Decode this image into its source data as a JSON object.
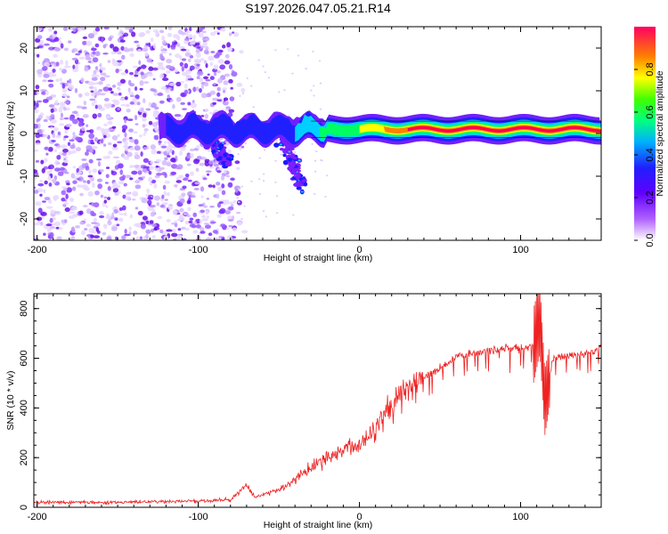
{
  "title": "S197.2026.047.05.21.R14",
  "chart_data": [
    {
      "type": "heatmap",
      "xlabel": "Height of straight line (km)",
      "ylabel": "Frequency (Hz)",
      "xlim": [
        -202,
        150
      ],
      "ylim": [
        -25,
        25
      ],
      "xticks": [
        -200,
        -100,
        0,
        100
      ],
      "yticks": [
        20,
        10,
        0,
        -10,
        -20
      ],
      "colorbar": {
        "label": "Normalized spectral amplitude",
        "range": [
          0.0,
          1.0
        ],
        "ticks": [
          "0.0",
          "0.2",
          "0.4",
          "0.6",
          "0.8"
        ],
        "colormap": [
          "#ffffff",
          "#8a00ff",
          "#2020ff",
          "#00e0ff",
          "#00ff40",
          "#ffff00",
          "#ff6000",
          "#ff0040"
        ]
      },
      "features": {
        "carrier_frequency_hz": 1.0,
        "noise_region_km": [
          -202,
          -80
        ],
        "doppler_streaks": [
          {
            "x_start": -100,
            "x_end": -80,
            "freq_start": 1,
            "freq_end": -7
          },
          {
            "x_start": -50,
            "x_end": -35,
            "freq_start": 1,
            "freq_end": -12
          }
        ]
      }
    },
    {
      "type": "line",
      "xlabel": "Height of straight line (km)",
      "ylabel": "SNR (10 * v/v)",
      "xlim": [
        -202,
        150
      ],
      "ylim": [
        0,
        860
      ],
      "xticks": [
        -200,
        -100,
        0,
        100
      ],
      "yticks": [
        0,
        200,
        400,
        600,
        800
      ],
      "series": [
        {
          "name": "SNR",
          "color": "#ee2222",
          "x": [
            -202,
            -150,
            -100,
            -80,
            -70,
            -65,
            -60,
            -50,
            -40,
            -30,
            -20,
            -10,
            0,
            10,
            20,
            30,
            40,
            50,
            60,
            70,
            80,
            90,
            100,
            108,
            112,
            115,
            120,
            130,
            140,
            150
          ],
          "y": [
            20,
            20,
            25,
            30,
            90,
            40,
            50,
            70,
            110,
            160,
            200,
            230,
            250,
            330,
            420,
            470,
            520,
            560,
            610,
            620,
            630,
            640,
            640,
            650,
            760,
            420,
            600,
            610,
            620,
            640
          ]
        }
      ]
    }
  ]
}
